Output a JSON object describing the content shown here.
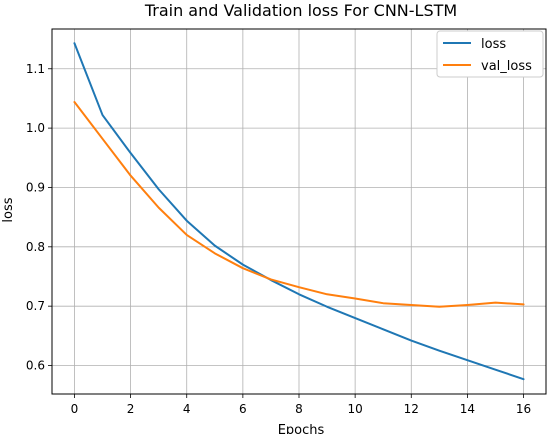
{
  "chart_data": {
    "type": "line",
    "title": "Train and Validation loss For CNN-LSTM",
    "xlabel": "Epochs",
    "ylabel": "loss",
    "x": [
      0,
      1,
      2,
      3,
      4,
      5,
      6,
      7,
      8,
      9,
      10,
      11,
      12,
      13,
      14,
      15,
      16
    ],
    "xlim": [
      -0.8,
      16.8
    ],
    "ylim": [
      0.552,
      1.167
    ],
    "xticks": [
      0,
      2,
      4,
      6,
      8,
      10,
      12,
      14,
      16
    ],
    "yticks": [
      0.6,
      0.7,
      0.8,
      0.9,
      1.0,
      1.1
    ],
    "ytick_labels": [
      "0.6",
      "0.7",
      "0.8",
      "0.9",
      "1.0",
      "1.1"
    ],
    "grid": true,
    "legend_position": "top-right",
    "series": [
      {
        "name": "loss",
        "color": "#1f77b4",
        "values": [
          1.143,
          1.022,
          0.958,
          0.897,
          0.844,
          0.802,
          0.77,
          0.744,
          0.72,
          0.699,
          0.68,
          0.661,
          0.642,
          0.625,
          0.609,
          0.593,
          0.577
        ]
      },
      {
        "name": "val_loss",
        "color": "#ff7f0e",
        "values": [
          1.044,
          0.982,
          0.92,
          0.866,
          0.82,
          0.789,
          0.764,
          0.745,
          0.732,
          0.72,
          0.713,
          0.705,
          0.702,
          0.699,
          0.702,
          0.706,
          0.703
        ]
      }
    ]
  }
}
